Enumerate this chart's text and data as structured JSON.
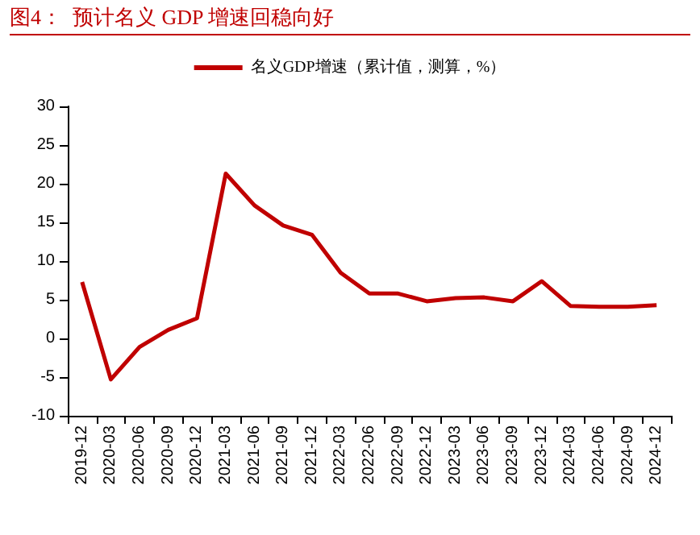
{
  "chart_data": {
    "type": "line",
    "title": "图4：  预计名义 GDP 增速回稳向好",
    "categories": [
      "2019-12",
      "2020-03",
      "2020-06",
      "2020-09",
      "2020-12",
      "2021-03",
      "2021-06",
      "2021-09",
      "2021-12",
      "2022-03",
      "2022-06",
      "2022-09",
      "2022-12",
      "2023-03",
      "2023-06",
      "2023-09",
      "2023-12",
      "2024-03",
      "2024-06",
      "2024-09",
      "2024-12"
    ],
    "series": [
      {
        "name": "名义GDP增速（累计值，测算，%）",
        "color": "#c00000",
        "values": [
          7.3,
          -5.3,
          -1.1,
          1.1,
          2.6,
          21.3,
          17.2,
          14.6,
          13.4,
          8.5,
          5.8,
          5.8,
          4.8,
          5.2,
          5.3,
          4.8,
          7.4,
          4.2,
          4.1,
          4.1,
          4.3
        ]
      }
    ],
    "ylim": [
      -10,
      30
    ],
    "yticks": [
      -10,
      -5,
      0,
      5,
      10,
      15,
      20,
      25,
      30
    ],
    "grid": false,
    "legend": "top",
    "marker": "none",
    "line_style": "solid"
  }
}
